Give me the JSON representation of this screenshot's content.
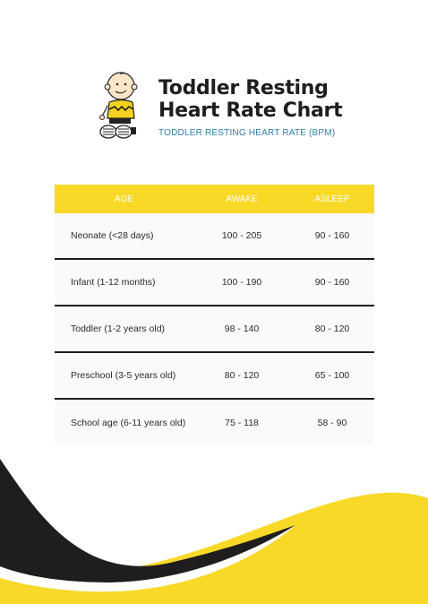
{
  "header": {
    "title_line1": "Toddler Resting",
    "title_line2": "Heart Rate Chart",
    "subtitle": "TODDLER RESTING HEART RATE (BPM)"
  },
  "table": {
    "columns": [
      "AGE",
      "AWAKE",
      "ASLEEP"
    ],
    "rows": [
      {
        "age": "Neonate (<28 days)",
        "awake": "100 - 205",
        "asleep": "90 - 160"
      },
      {
        "age": "Infant (1-12 months)",
        "awake": "100 - 190",
        "asleep": "90 - 160"
      },
      {
        "age": "Toddler (1-2 years old)",
        "awake": "98 - 140",
        "asleep": "80 - 120"
      },
      {
        "age": "Preschool (3-5 years old)",
        "awake": "80 - 120",
        "asleep": "65 - 100"
      },
      {
        "age": "School age (6-11 years old)",
        "awake": "75 - 118",
        "asleep": "58 - 90"
      }
    ]
  },
  "colors": {
    "accent_yellow": "#f9d928",
    "dark": "#1f1d1e",
    "subtitle_blue": "#2e7fa8"
  },
  "icons": {
    "mascot": "cartoon-boy-icon"
  }
}
